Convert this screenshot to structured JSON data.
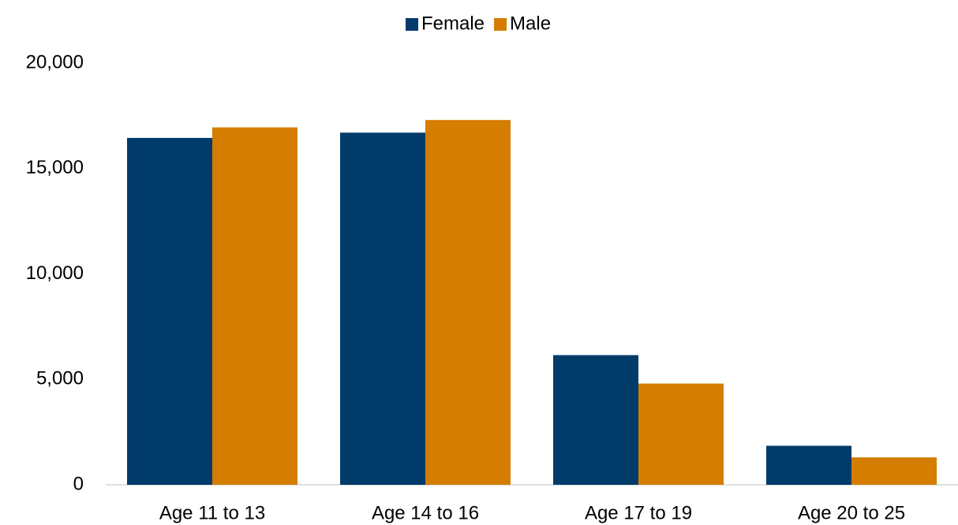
{
  "chart_data": {
    "type": "bar",
    "categories": [
      "Age 11 to 13",
      "Age 14 to 16",
      "Age 17 to 19",
      "Age 20 to 25"
    ],
    "series": [
      {
        "name": "Female",
        "color": "#003b6a",
        "values": [
          16450,
          16700,
          6150,
          1850
        ]
      },
      {
        "name": "Male",
        "color": "#d47d00",
        "values": [
          16950,
          17300,
          4800,
          1300
        ]
      }
    ],
    "ylim": [
      0,
      20000
    ],
    "yticks": [
      0,
      {
        "value": 5000,
        "label": "5,000"
      },
      {
        "value": 10000,
        "label": "10,000"
      },
      {
        "value": 15000,
        "label": "15,000"
      },
      {
        "value": 20000,
        "label": "20,000"
      }
    ],
    "grid": false,
    "legend": "top"
  }
}
